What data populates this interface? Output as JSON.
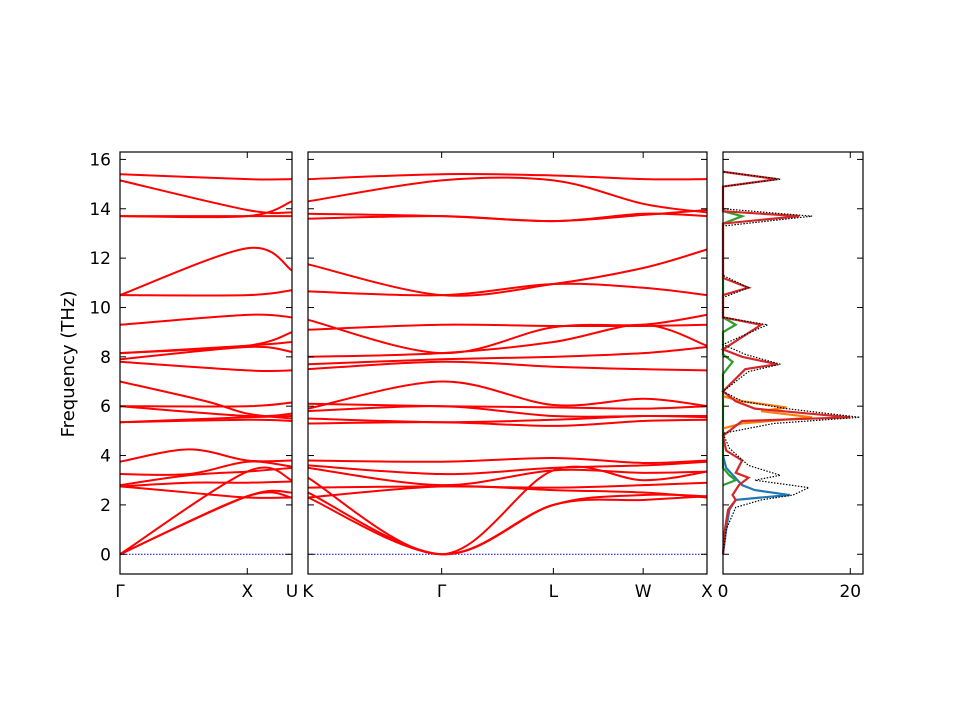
{
  "figure": {
    "background": "#ffffff"
  },
  "chart_data": [
    {
      "type": "line",
      "title": "",
      "ylabel": "Frequency (THz)",
      "ylim": [
        -0.8,
        16.3
      ],
      "yticks": [
        0,
        2,
        4,
        6,
        8,
        10,
        12,
        14,
        16
      ],
      "xticks": [
        "Γ",
        "X",
        "U"
      ],
      "panels": [
        {
          "name": "panel-left",
          "xlim": [
            0,
            1.0
          ],
          "segments": [
            {
              "from": "Γ",
              "to": "X",
              "x0": 0.0,
              "x1": 0.74
            },
            {
              "from": "X",
              "to": "U",
              "x0": 0.74,
              "x1": 1.0
            }
          ],
          "tick_positions": [
            0.0,
            0.74,
            1.0
          ],
          "tick_labels": [
            "Γ",
            "X",
            "U"
          ]
        }
      ],
      "line_color": "#ff0000",
      "zero_line_color": "#0000ff",
      "series": [
        {
          "x": [
            0,
            0.74,
            1.0
          ],
          "values": [
            0,
            2.35,
            2.3
          ]
        },
        {
          "x": [
            0,
            0.74,
            1.0
          ],
          "values": [
            0,
            2.35,
            2.5
          ]
        },
        {
          "x": [
            0,
            0.74,
            1.0
          ],
          "values": [
            0,
            3.35,
            3.0
          ]
        },
        {
          "x": [
            0,
            0.4,
            0.74,
            1.0
          ],
          "values": [
            2.75,
            2.5,
            2.3,
            2.3
          ]
        },
        {
          "x": [
            0,
            0.4,
            0.74,
            1.0
          ],
          "values": [
            2.75,
            2.9,
            2.9,
            2.95
          ]
        },
        {
          "x": [
            0,
            0.4,
            0.74,
            1.0
          ],
          "values": [
            2.8,
            3.2,
            3.35,
            3.5
          ]
        },
        {
          "x": [
            0,
            0.4,
            0.74,
            1.0
          ],
          "values": [
            3.25,
            3.25,
            3.75,
            3.55
          ]
        },
        {
          "x": [
            0,
            0.4,
            0.74,
            1.0
          ],
          "values": [
            3.75,
            4.25,
            3.8,
            3.8
          ]
        },
        {
          "x": [
            0,
            0.74,
            1.0
          ],
          "values": [
            5.35,
            5.45,
            5.4
          ]
        },
        {
          "x": [
            0,
            0.74,
            1.0
          ],
          "values": [
            5.35,
            5.55,
            5.6
          ]
        },
        {
          "x": [
            0,
            0.74,
            1.0
          ],
          "values": [
            6.0,
            5.6,
            5.7
          ]
        },
        {
          "x": [
            0,
            0.74,
            1.0
          ],
          "values": [
            6.0,
            6.0,
            6.15
          ]
        },
        {
          "x": [
            0,
            0.5,
            0.74,
            1.0
          ],
          "values": [
            7.0,
            6.2,
            5.7,
            5.5
          ]
        },
        {
          "x": [
            0,
            0.74,
            1.0
          ],
          "values": [
            7.8,
            7.45,
            7.45
          ]
        },
        {
          "x": [
            0,
            0.74,
            1.0
          ],
          "values": [
            7.9,
            8.4,
            8.2
          ]
        },
        {
          "x": [
            0,
            0.74,
            1.0
          ],
          "values": [
            8.15,
            8.45,
            8.6
          ]
        },
        {
          "x": [
            0,
            0.74,
            1.0
          ],
          "values": [
            8.15,
            8.45,
            9.0
          ]
        },
        {
          "x": [
            0,
            0.74,
            1.0
          ],
          "values": [
            9.3,
            9.7,
            9.6
          ]
        },
        {
          "x": [
            0,
            0.74,
            1.0
          ],
          "values": [
            10.5,
            10.5,
            10.7
          ]
        },
        {
          "x": [
            0,
            0.74,
            1.0
          ],
          "values": [
            10.5,
            12.4,
            11.5
          ]
        },
        {
          "x": [
            0,
            0.74,
            1.0
          ],
          "values": [
            13.7,
            13.7,
            13.7
          ]
        },
        {
          "x": [
            0,
            0.74,
            1.0
          ],
          "values": [
            13.7,
            13.7,
            14.3
          ]
        },
        {
          "x": [
            0,
            0.74,
            1.0
          ],
          "values": [
            15.15,
            13.95,
            13.85
          ]
        },
        {
          "x": [
            0,
            0.74,
            1.0
          ],
          "values": [
            15.4,
            15.2,
            15.2
          ]
        }
      ]
    },
    {
      "type": "line",
      "title": "",
      "ylim": [
        -0.8,
        16.3
      ],
      "xticks": [
        "K",
        "Γ",
        "L",
        "W",
        "X"
      ],
      "panels": [
        {
          "name": "panel-middle",
          "xlim": [
            0,
            1.0
          ],
          "tick_positions": [
            0.0,
            0.335,
            0.615,
            0.84,
            1.0
          ],
          "tick_labels": [
            "K",
            "Γ",
            "L",
            "W",
            "X"
          ]
        }
      ],
      "line_color": "#ff0000",
      "zero_line_color": "#0000ff",
      "series": [
        {
          "x": [
            0,
            0.335,
            0.615,
            0.84,
            1.0
          ],
          "values": [
            2.3,
            0,
            2.0,
            2.2,
            2.35
          ]
        },
        {
          "x": [
            0,
            0.335,
            0.615,
            0.84,
            1.0
          ],
          "values": [
            2.5,
            0,
            2.0,
            2.4,
            2.35
          ]
        },
        {
          "x": [
            0,
            0.335,
            0.615,
            0.84,
            1.0
          ],
          "values": [
            3.1,
            0,
            3.4,
            3.0,
            3.35
          ]
        },
        {
          "x": [
            0,
            0.335,
            0.615,
            0.84,
            1.0
          ],
          "values": [
            2.3,
            2.75,
            2.6,
            2.5,
            2.3
          ]
        },
        {
          "x": [
            0,
            0.335,
            0.615,
            0.84,
            1.0
          ],
          "values": [
            2.7,
            2.75,
            2.7,
            2.8,
            2.9
          ]
        },
        {
          "x": [
            0,
            0.335,
            0.615,
            0.84,
            1.0
          ],
          "values": [
            3.5,
            2.8,
            3.4,
            3.3,
            3.35
          ]
        },
        {
          "x": [
            0,
            0.335,
            0.615,
            0.84,
            1.0
          ],
          "values": [
            3.6,
            3.25,
            3.5,
            3.6,
            3.75
          ]
        },
        {
          "x": [
            0,
            0.335,
            0.615,
            0.84,
            1.0
          ],
          "values": [
            3.8,
            3.75,
            3.9,
            3.7,
            3.8
          ]
        },
        {
          "x": [
            0,
            0.335,
            0.615,
            0.84,
            1.0
          ],
          "values": [
            5.3,
            5.35,
            5.2,
            5.4,
            5.45
          ]
        },
        {
          "x": [
            0,
            0.335,
            0.615,
            0.84,
            1.0
          ],
          "values": [
            5.5,
            5.35,
            5.45,
            5.6,
            5.55
          ]
        },
        {
          "x": [
            0,
            0.335,
            0.615,
            0.84,
            1.0
          ],
          "values": [
            5.8,
            6.0,
            5.6,
            5.6,
            5.6
          ]
        },
        {
          "x": [
            0,
            0.335,
            0.615,
            0.84,
            1.0
          ],
          "values": [
            6.1,
            6.0,
            5.95,
            5.9,
            6.0
          ]
        },
        {
          "x": [
            0,
            0.335,
            0.615,
            0.84,
            1.0
          ],
          "values": [
            5.9,
            7.0,
            6.05,
            6.3,
            6.0
          ]
        },
        {
          "x": [
            0,
            0.335,
            0.615,
            0.84,
            1.0
          ],
          "values": [
            7.5,
            7.8,
            7.6,
            7.5,
            7.45
          ]
        },
        {
          "x": [
            0,
            0.335,
            0.615,
            0.84,
            1.0
          ],
          "values": [
            7.7,
            7.9,
            8.0,
            8.15,
            8.4
          ]
        },
        {
          "x": [
            0,
            0.335,
            0.615,
            0.84,
            1.0
          ],
          "values": [
            8.0,
            8.15,
            8.6,
            9.3,
            8.45
          ]
        },
        {
          "x": [
            0,
            0.335,
            0.615,
            0.84,
            1.0
          ],
          "values": [
            9.5,
            8.15,
            9.2,
            9.3,
            9.7
          ]
        },
        {
          "x": [
            0,
            0.335,
            0.615,
            0.84,
            1.0
          ],
          "values": [
            9.1,
            9.3,
            9.25,
            9.25,
            9.3
          ]
        },
        {
          "x": [
            0,
            0.335,
            0.615,
            0.84,
            1.0
          ],
          "values": [
            10.65,
            10.5,
            10.95,
            10.8,
            10.5
          ]
        },
        {
          "x": [
            0,
            0.335,
            0.615,
            0.84,
            1.0
          ],
          "values": [
            11.75,
            10.5,
            10.95,
            11.6,
            12.35
          ]
        },
        {
          "x": [
            0,
            0.335,
            0.615,
            0.84,
            1.0
          ],
          "values": [
            13.6,
            13.7,
            13.5,
            13.8,
            13.7
          ]
        },
        {
          "x": [
            0,
            0.335,
            0.615,
            0.84,
            1.0
          ],
          "values": [
            13.8,
            13.7,
            13.5,
            13.75,
            13.95
          ]
        },
        {
          "x": [
            0,
            0.335,
            0.615,
            0.84,
            1.0
          ],
          "values": [
            14.3,
            15.15,
            15.15,
            14.2,
            13.85
          ]
        },
        {
          "x": [
            0,
            0.335,
            0.615,
            0.84,
            1.0
          ],
          "values": [
            15.2,
            15.4,
            15.35,
            15.2,
            15.2
          ]
        }
      ]
    },
    {
      "type": "area",
      "title": "",
      "ylim": [
        -0.8,
        16.3
      ],
      "xlim": [
        0,
        22
      ],
      "xticks": [
        0,
        20
      ],
      "tick_labels": [
        "0",
        "20"
      ],
      "series_colors": [
        "#1f77b4",
        "#ff7f0e",
        "#2ca02c",
        "#d62728",
        "#000000"
      ],
      "series": [
        {
          "name_hidden": true,
          "color": "#1f77b4",
          "points": [
            [
              0,
              0
            ],
            [
              0.5,
              1.0
            ],
            [
              1.0,
              1.8
            ],
            [
              2.0,
              2.2
            ],
            [
              6.0,
              2.3
            ],
            [
              10.5,
              2.4
            ],
            [
              5.0,
              2.6
            ],
            [
              3.0,
              2.8
            ],
            [
              0.5,
              3.5
            ],
            [
              0,
              4
            ]
          ]
        },
        {
          "name_hidden": true,
          "color": "#2ca02c",
          "points": [
            [
              0,
              2.8
            ],
            [
              2.0,
              3.0
            ],
            [
              1.0,
              3.2
            ],
            [
              0,
              3.5
            ],
            [
              0,
              7.3
            ],
            [
              1.5,
              7.8
            ],
            [
              0,
              8.1
            ],
            [
              0,
              9.0
            ],
            [
              2.0,
              9.3
            ],
            [
              0,
              9.6
            ],
            [
              0,
              13.4
            ],
            [
              3.0,
              13.7
            ],
            [
              0,
              13.9
            ]
          ]
        },
        {
          "name_hidden": true,
          "color": "#ff7f0e",
          "points": [
            [
              0,
              5.1
            ],
            [
              3.0,
              5.3
            ],
            [
              14.0,
              5.55
            ],
            [
              6.0,
              5.8
            ],
            [
              10.0,
              5.95
            ],
            [
              3.0,
              6.2
            ],
            [
              0,
              6.4
            ]
          ]
        },
        {
          "name_hidden": true,
          "color": "#d62728",
          "points": [
            [
              0,
              0
            ],
            [
              0.3,
              1.0
            ],
            [
              0.8,
              1.8
            ],
            [
              2.0,
              2.2
            ],
            [
              1.5,
              2.4
            ],
            [
              2.5,
              2.8
            ],
            [
              4.0,
              3.1
            ],
            [
              2.0,
              3.3
            ],
            [
              3.0,
              3.8
            ],
            [
              0.5,
              4.2
            ],
            [
              0,
              4.8
            ],
            [
              3.0,
              5.4
            ],
            [
              20.0,
              5.55
            ],
            [
              5.0,
              5.9
            ],
            [
              2.0,
              6.2
            ],
            [
              0,
              6.6
            ],
            [
              3.5,
              7.5
            ],
            [
              8.5,
              7.7
            ],
            [
              3.0,
              8.0
            ],
            [
              0,
              8.3
            ],
            [
              6.0,
              9.3
            ],
            [
              0,
              9.6
            ],
            [
              0,
              10.5
            ],
            [
              4.0,
              10.8
            ],
            [
              0,
              11.2
            ],
            [
              0,
              13.4
            ],
            [
              12.0,
              13.7
            ],
            [
              0,
              13.9
            ],
            [
              0,
              14.9
            ],
            [
              8.5,
              15.2
            ],
            [
              0,
              15.5
            ]
          ]
        },
        {
          "name_hidden": true,
          "color": "#000000",
          "style": "dotted",
          "points": [
            [
              0,
              0
            ],
            [
              0.5,
              1.0
            ],
            [
              2.0,
              1.9
            ],
            [
              6.0,
              2.2
            ],
            [
              11.0,
              2.4
            ],
            [
              13.5,
              2.7
            ],
            [
              5.0,
              3.0
            ],
            [
              9.0,
              3.2
            ],
            [
              4.0,
              3.6
            ],
            [
              1.0,
              4.3
            ],
            [
              0,
              4.9
            ],
            [
              8.0,
              5.3
            ],
            [
              21.5,
              5.55
            ],
            [
              10.0,
              5.9
            ],
            [
              3.0,
              6.2
            ],
            [
              0,
              6.6
            ],
            [
              4.0,
              7.4
            ],
            [
              9.0,
              7.7
            ],
            [
              3.5,
              8.1
            ],
            [
              0,
              8.5
            ],
            [
              7.0,
              9.3
            ],
            [
              0,
              9.6
            ],
            [
              0,
              10.4
            ],
            [
              4.0,
              10.8
            ],
            [
              0,
              11.3
            ],
            [
              0,
              13.3
            ],
            [
              14.0,
              13.7
            ],
            [
              0,
              14.0
            ],
            [
              0,
              14.9
            ],
            [
              9.0,
              15.2
            ],
            [
              0,
              15.5
            ]
          ]
        }
      ]
    }
  ]
}
